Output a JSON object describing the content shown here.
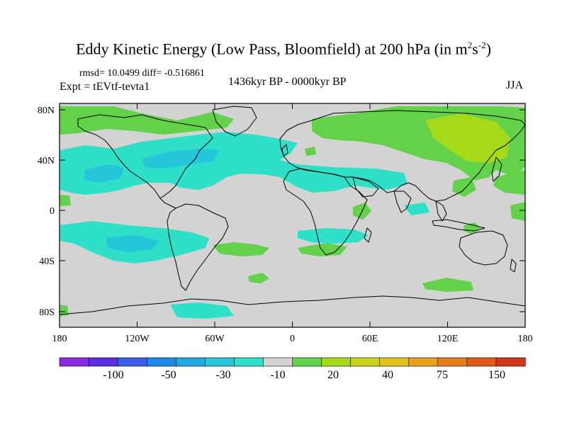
{
  "title": {
    "main": "Eddy Kinetic Energy (Low Pass, Bloomfield) at 200 hPa (in m",
    "sup1": "2",
    "mid": "s",
    "sup2": "-2",
    "end": ")"
  },
  "stats": "rmsd= 10.0499 diff= -0.516861",
  "experiment": "Expt = tEVtf-tevta1",
  "period": "1436kyr BP - 0000kyr BP",
  "season": "JJA",
  "lat_ticks": [
    "80N",
    "40N",
    "0",
    "40S",
    "80S"
  ],
  "lon_ticks": [
    "180",
    "120W",
    "60W",
    "0",
    "60E",
    "120E",
    "180"
  ],
  "colorbar": {
    "colors": [
      "#8a2be2",
      "#5a2ee0",
      "#3a5ee6",
      "#1e88e8",
      "#22a9e0",
      "#26c6da",
      "#2ee0c8",
      "#d3d3d3",
      "#63d14a",
      "#a6d91a",
      "#c8d21a",
      "#e0c418",
      "#e8a018",
      "#e67e1a",
      "#e05a1a",
      "#d0361a"
    ],
    "labels": [
      "-100",
      "-50",
      "-30",
      "-10",
      "20",
      "40",
      "75",
      "150"
    ]
  },
  "palette": {
    "background": "#d3d3d3",
    "neg": "#2ee0c8",
    "neg2": "#26c6da",
    "pos": "#63d14a",
    "pos2": "#a6d91a"
  }
}
